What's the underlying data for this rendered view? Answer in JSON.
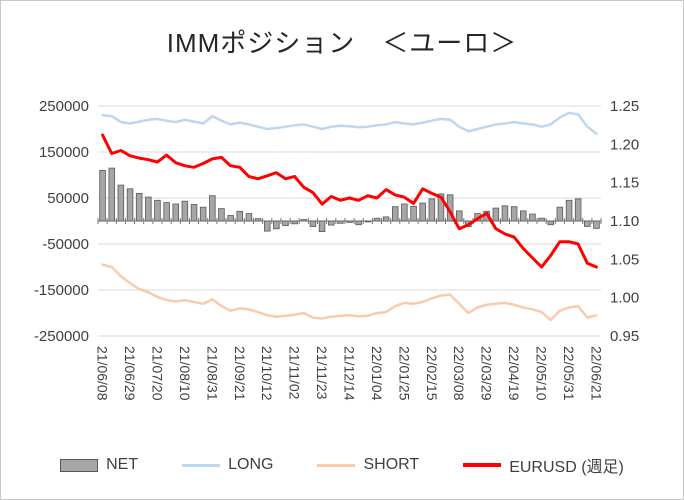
{
  "title": "IMMポジション　＜ユーロ＞",
  "legend": {
    "items": [
      {
        "key": "net",
        "label": "NET",
        "color": "#a6a6a6",
        "border": "#595959",
        "kind": "bar"
      },
      {
        "key": "long",
        "label": "LONG",
        "color": "#bdd7ee",
        "kind": "line"
      },
      {
        "key": "short",
        "label": "SHORT",
        "color": "#f8cbad",
        "kind": "line"
      },
      {
        "key": "eurusd",
        "label": "EURUSD (週足)",
        "color": "#ff0000",
        "kind": "line"
      }
    ]
  },
  "chart_data": {
    "type": "combo",
    "title": "IMMポジション　＜ユーロ＞",
    "grid": true,
    "legend_position": "bottom",
    "x_tick_every": 3,
    "colors": {
      "grid": "#d9d9d9",
      "axis": "#737373",
      "text": "#404040"
    },
    "left_axis": {
      "min": -250000,
      "max": 250000,
      "ticks": [
        250000,
        150000,
        50000,
        -50000,
        -150000,
        -250000
      ]
    },
    "right_axis": {
      "min": 0.95,
      "max": 1.25,
      "ticks": [
        1.25,
        1.2,
        1.15,
        1.1,
        1.05,
        1.0,
        0.95
      ]
    },
    "x": [
      "21/06/08",
      "21/06/15",
      "21/06/22",
      "21/06/29",
      "21/07/06",
      "21/07/13",
      "21/07/20",
      "21/07/27",
      "21/08/03",
      "21/08/10",
      "21/08/17",
      "21/08/24",
      "21/08/31",
      "21/09/07",
      "21/09/14",
      "21/09/21",
      "21/09/28",
      "21/10/05",
      "21/10/12",
      "21/10/19",
      "21/10/26",
      "21/11/02",
      "21/11/09",
      "21/11/16",
      "21/11/23",
      "21/11/30",
      "21/12/07",
      "21/12/14",
      "21/12/21",
      "21/12/28",
      "22/01/04",
      "22/01/11",
      "22/01/18",
      "22/01/25",
      "22/02/01",
      "22/02/08",
      "22/02/15",
      "22/02/22",
      "22/03/01",
      "22/03/08",
      "22/03/15",
      "22/03/22",
      "22/03/29",
      "22/04/05",
      "22/04/12",
      "22/04/19",
      "22/04/26",
      "22/05/03",
      "22/05/10",
      "22/05/17",
      "22/05/24",
      "22/05/31",
      "22/06/07",
      "22/06/14",
      "22/06/21"
    ],
    "series": [
      {
        "key": "net",
        "name": "NET",
        "type": "bar",
        "axis": "left",
        "color": "#a6a6a6",
        "border": "#595959",
        "values": [
          110000,
          115000,
          78000,
          70000,
          60000,
          52000,
          45000,
          40000,
          37000,
          43000,
          36000,
          30000,
          55000,
          27000,
          12000,
          21000,
          16000,
          5000,
          -22000,
          -17000,
          -10000,
          -6000,
          3000,
          -12000,
          -23000,
          -9000,
          -5000,
          -3000,
          -8000,
          -2000,
          6000,
          9000,
          31000,
          37000,
          32000,
          39000,
          48000,
          59000,
          57000,
          22000,
          -12000,
          16000,
          21000,
          28000,
          33000,
          31000,
          22000,
          15000,
          6000,
          -8000,
          30000,
          45000,
          48000,
          -12000,
          -16000
        ]
      },
      {
        "key": "long",
        "name": "LONG",
        "type": "line",
        "axis": "left",
        "color": "#bdd7ee",
        "stroke_width": 2.5,
        "values": [
          230000,
          228000,
          215000,
          212000,
          216000,
          220000,
          222000,
          218000,
          215000,
          220000,
          216000,
          212000,
          228000,
          218000,
          210000,
          214000,
          210000,
          205000,
          200000,
          202000,
          205000,
          208000,
          210000,
          205000,
          200000,
          205000,
          207000,
          206000,
          204000,
          205000,
          208000,
          210000,
          215000,
          212000,
          210000,
          214000,
          218000,
          222000,
          220000,
          205000,
          195000,
          200000,
          205000,
          210000,
          212000,
          215000,
          212000,
          210000,
          205000,
          210000,
          225000,
          235000,
          232000,
          205000,
          190000
        ]
      },
      {
        "key": "short",
        "name": "SHORT",
        "type": "line",
        "axis": "left",
        "color": "#f8cbad",
        "stroke_width": 2.5,
        "values": [
          -95000,
          -100000,
          -120000,
          -135000,
          -148000,
          -155000,
          -165000,
          -172000,
          -175000,
          -172000,
          -176000,
          -180000,
          -170000,
          -185000,
          -195000,
          -190000,
          -192000,
          -198000,
          -205000,
          -208000,
          -206000,
          -204000,
          -200000,
          -210000,
          -212000,
          -208000,
          -206000,
          -205000,
          -207000,
          -206000,
          -200000,
          -198000,
          -185000,
          -178000,
          -180000,
          -176000,
          -168000,
          -162000,
          -160000,
          -180000,
          -200000,
          -188000,
          -182000,
          -180000,
          -178000,
          -182000,
          -188000,
          -192000,
          -198000,
          -215000,
          -195000,
          -188000,
          -185000,
          -210000,
          -205000
        ]
      },
      {
        "key": "eurusd",
        "name": "EURUSD (週足)",
        "type": "line",
        "axis": "right",
        "color": "#ff0000",
        "stroke_width": 3,
        "values": [
          1.212,
          1.188,
          1.192,
          1.185,
          1.182,
          1.18,
          1.177,
          1.186,
          1.176,
          1.172,
          1.17,
          1.175,
          1.181,
          1.183,
          1.172,
          1.17,
          1.158,
          1.155,
          1.159,
          1.163,
          1.155,
          1.158,
          1.144,
          1.137,
          1.122,
          1.132,
          1.127,
          1.13,
          1.127,
          1.133,
          1.13,
          1.141,
          1.134,
          1.131,
          1.123,
          1.142,
          1.136,
          1.131,
          1.112,
          1.09,
          1.095,
          1.103,
          1.11,
          1.09,
          1.083,
          1.079,
          1.064,
          1.052,
          1.04,
          1.055,
          1.073,
          1.073,
          1.07,
          1.045,
          1.04
        ]
      }
    ]
  }
}
